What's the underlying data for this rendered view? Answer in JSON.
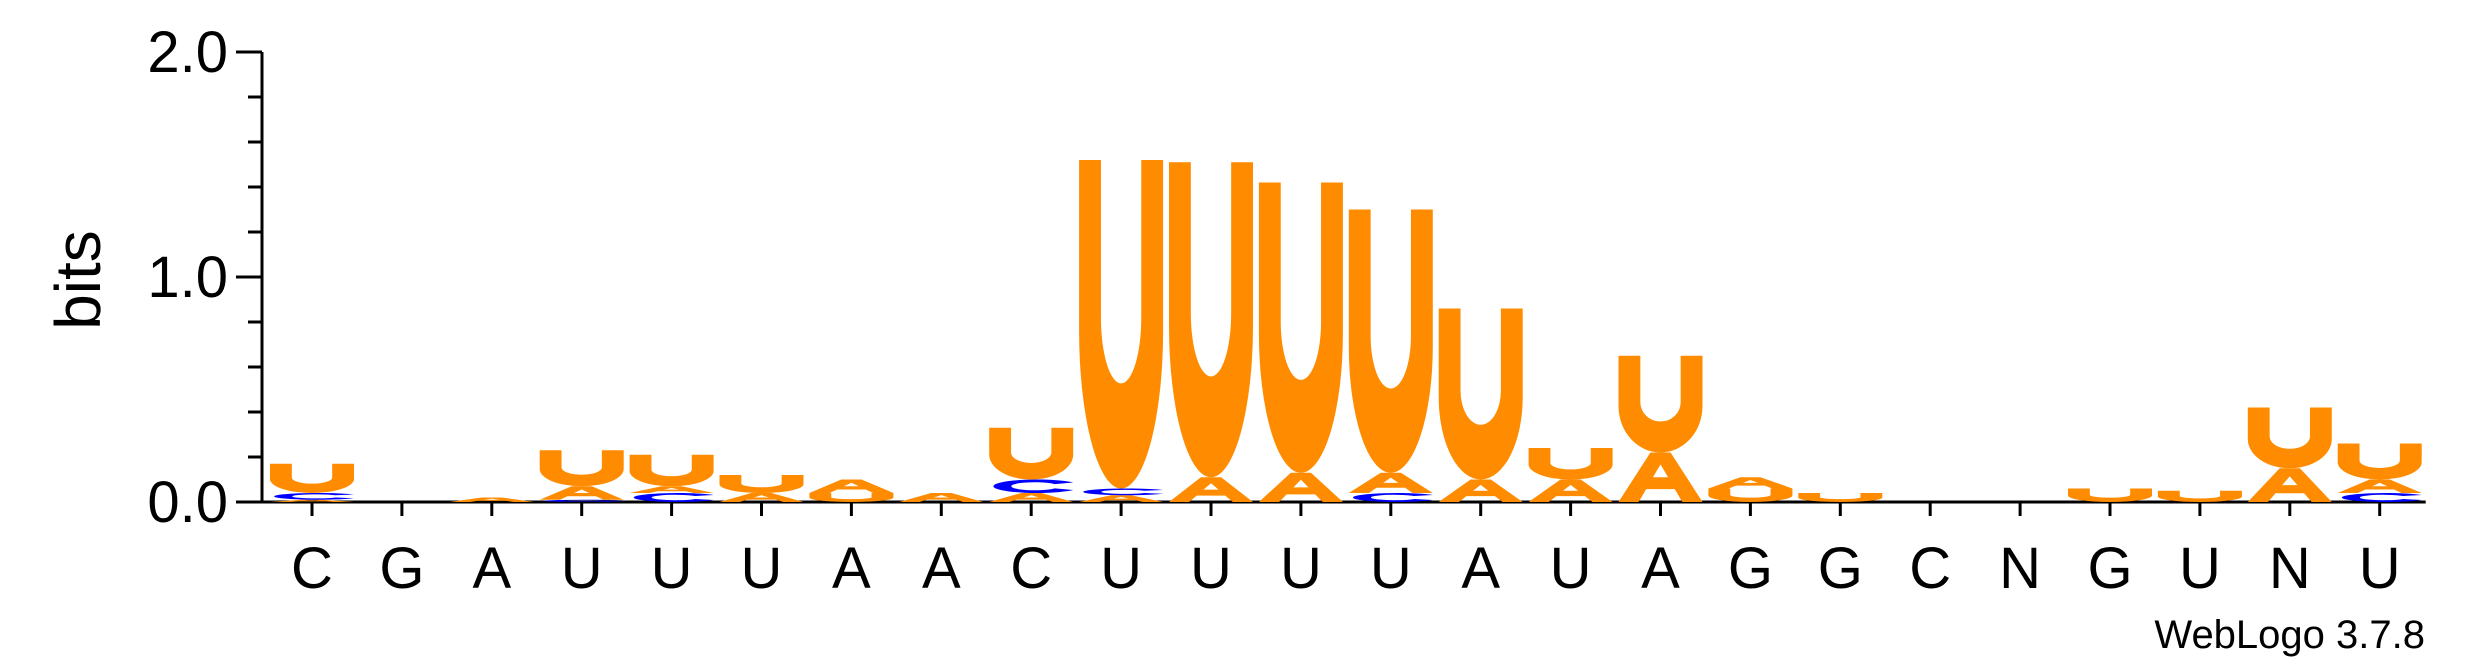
{
  "chart_data": {
    "type": "sequence-logo",
    "title": "",
    "ylabel": "bits",
    "xlabel": "",
    "ylim": [
      0,
      2.0
    ],
    "yticks": [
      {
        "value": 0.0,
        "label": "0.0"
      },
      {
        "value": 1.0,
        "label": "1.0"
      },
      {
        "value": 2.0,
        "label": "2.0"
      }
    ],
    "ytick_step_minor": 0.2,
    "grid": false,
    "colors": {
      "U": "#FF8C00",
      "A": "#FF8C00",
      "C": "#0000FF",
      "G": "#0000FF"
    },
    "consensus": [
      "C",
      "G",
      "A",
      "U",
      "U",
      "U",
      "A",
      "A",
      "C",
      "U",
      "U",
      "U",
      "U",
      "A",
      "U",
      "A",
      "G",
      "G",
      "C",
      "N",
      "G",
      "U",
      "N",
      "U"
    ],
    "positions": [
      [
        {
          "letter": "A",
          "bits": 0.01
        },
        {
          "letter": "C",
          "bits": 0.03
        },
        {
          "letter": "U",
          "bits": 0.13
        }
      ],
      [],
      [
        {
          "letter": "A",
          "bits": 0.02
        }
      ],
      [
        {
          "letter": "C",
          "bits": 0.01
        },
        {
          "letter": "A",
          "bits": 0.06
        },
        {
          "letter": "U",
          "bits": 0.16
        }
      ],
      [
        {
          "letter": "C",
          "bits": 0.04
        },
        {
          "letter": "A",
          "bits": 0.03
        },
        {
          "letter": "U",
          "bits": 0.14
        }
      ],
      [
        {
          "letter": "A",
          "bits": 0.04
        },
        {
          "letter": "U",
          "bits": 0.08
        }
      ],
      [
        {
          "letter": "U",
          "bits": 0.04
        },
        {
          "letter": "A",
          "bits": 0.06
        }
      ],
      [
        {
          "letter": "A",
          "bits": 0.04
        }
      ],
      [
        {
          "letter": "A",
          "bits": 0.04
        },
        {
          "letter": "C",
          "bits": 0.06
        },
        {
          "letter": "U",
          "bits": 0.23
        }
      ],
      [
        {
          "letter": "A",
          "bits": 0.03
        },
        {
          "letter": "C",
          "bits": 0.03
        },
        {
          "letter": "U",
          "bits": 1.46
        }
      ],
      [
        {
          "letter": "A",
          "bits": 0.11
        },
        {
          "letter": "U",
          "bits": 1.4
        }
      ],
      [
        {
          "letter": "A",
          "bits": 0.13
        },
        {
          "letter": "U",
          "bits": 1.29
        }
      ],
      [
        {
          "letter": "C",
          "bits": 0.04
        },
        {
          "letter": "A",
          "bits": 0.09
        },
        {
          "letter": "U",
          "bits": 1.17
        }
      ],
      [
        {
          "letter": "A",
          "bits": 0.1
        },
        {
          "letter": "U",
          "bits": 0.76
        }
      ],
      [
        {
          "letter": "A",
          "bits": 0.1
        },
        {
          "letter": "U",
          "bits": 0.14
        }
      ],
      [
        {
          "letter": "A",
          "bits": 0.22
        },
        {
          "letter": "U",
          "bits": 0.43
        }
      ],
      [
        {
          "letter": "U",
          "bits": 0.06
        },
        {
          "letter": "A",
          "bits": 0.05
        }
      ],
      [
        {
          "letter": "U",
          "bits": 0.04
        }
      ],
      [],
      [],
      [
        {
          "letter": "U",
          "bits": 0.06
        }
      ],
      [
        {
          "letter": "U",
          "bits": 0.05
        }
      ],
      [
        {
          "letter": "A",
          "bits": 0.15
        },
        {
          "letter": "U",
          "bits": 0.27
        }
      ],
      [
        {
          "letter": "C",
          "bits": 0.04
        },
        {
          "letter": "A",
          "bits": 0.06
        },
        {
          "letter": "U",
          "bits": 0.16
        }
      ]
    ],
    "footer": "WebLogo 3.7.8"
  }
}
